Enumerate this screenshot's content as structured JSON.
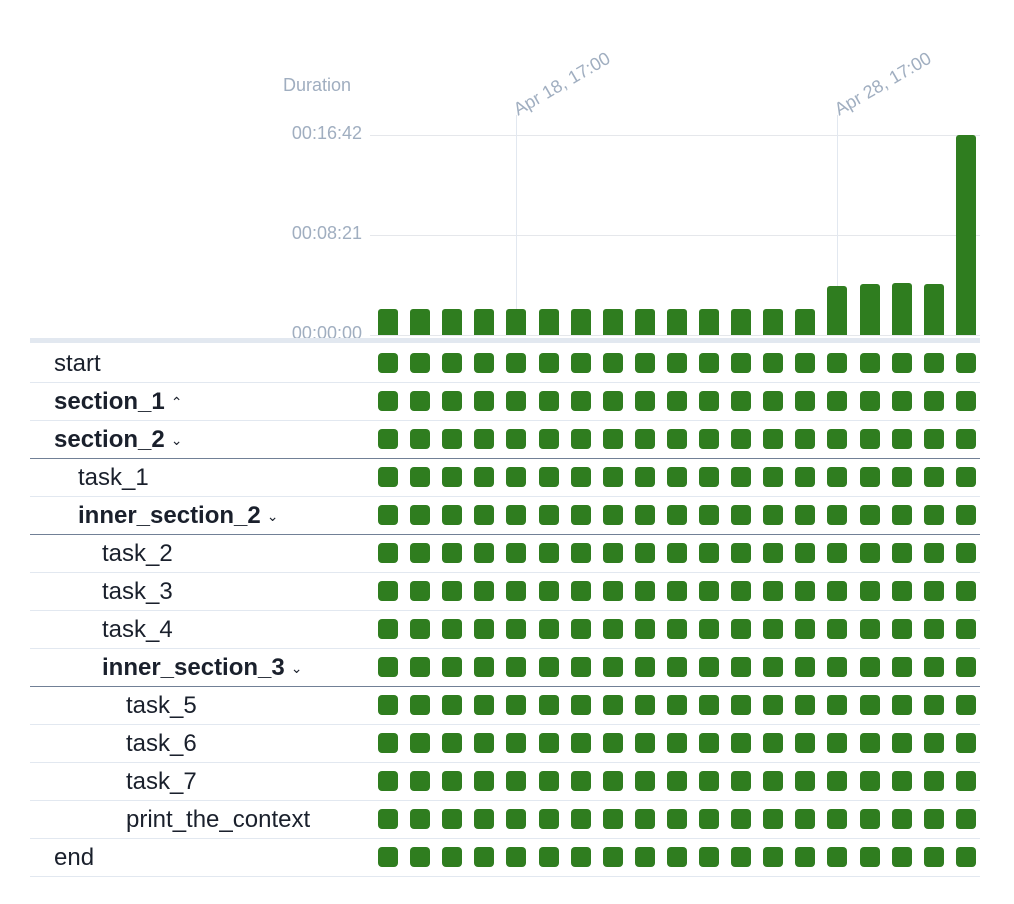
{
  "header": {
    "duration_label": "Duration"
  },
  "chart_data": {
    "type": "bar",
    "ylabel": "Duration",
    "ytick_labels": [
      "00:16:42",
      "00:08:21",
      "00:00:00"
    ],
    "ytick_values_seconds": [
      1002,
      501,
      0
    ],
    "ylim_seconds": [
      0,
      1002
    ],
    "date_ticks": [
      {
        "label": "Apr 18, 17:00",
        "run_index": 4
      },
      {
        "label": "Apr 28, 17:00",
        "run_index": 14
      }
    ],
    "values_seconds": [
      130,
      130,
      130,
      130,
      130,
      130,
      130,
      130,
      130,
      130,
      130,
      130,
      130,
      130,
      245,
      255,
      260,
      255,
      1002
    ],
    "bar_color": "#2f7d1f"
  },
  "grid": {
    "cell_color": "#2f7d1f",
    "run_count": 19
  },
  "tasks": [
    {
      "name": "start",
      "depth": 0,
      "bold": false,
      "chevron": "",
      "group_end": false
    },
    {
      "name": "section_1",
      "depth": 0,
      "bold": true,
      "chevron": "⌃",
      "group_end": false
    },
    {
      "name": "section_2",
      "depth": 0,
      "bold": true,
      "chevron": "⌄",
      "group_end": true
    },
    {
      "name": "task_1",
      "depth": 1,
      "bold": false,
      "chevron": "",
      "group_end": false
    },
    {
      "name": "inner_section_2",
      "depth": 1,
      "bold": true,
      "chevron": "⌄",
      "group_end": true
    },
    {
      "name": "task_2",
      "depth": 2,
      "bold": false,
      "chevron": "",
      "group_end": false
    },
    {
      "name": "task_3",
      "depth": 2,
      "bold": false,
      "chevron": "",
      "group_end": false
    },
    {
      "name": "task_4",
      "depth": 2,
      "bold": false,
      "chevron": "",
      "group_end": false
    },
    {
      "name": "inner_section_3",
      "depth": 2,
      "bold": true,
      "chevron": "⌄",
      "group_end": true
    },
    {
      "name": "task_5",
      "depth": 3,
      "bold": false,
      "chevron": "",
      "group_end": false
    },
    {
      "name": "task_6",
      "depth": 3,
      "bold": false,
      "chevron": "",
      "group_end": false
    },
    {
      "name": "task_7",
      "depth": 3,
      "bold": false,
      "chevron": "",
      "group_end": false
    },
    {
      "name": "print_the_context",
      "depth": 3,
      "bold": false,
      "chevron": "",
      "group_end": false
    },
    {
      "name": "end",
      "depth": 0,
      "bold": false,
      "chevron": "",
      "group_end": false
    }
  ]
}
